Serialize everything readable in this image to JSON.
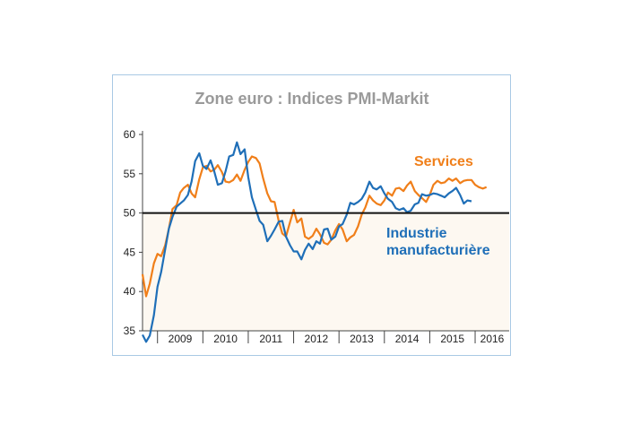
{
  "chart_data": {
    "type": "line",
    "title": "Zone euro : Indices PMI-Markit",
    "xlabel": "",
    "ylabel": "",
    "ylim": [
      35,
      60
    ],
    "yticks": [
      "60",
      "55",
      "50",
      "45",
      "40",
      "35"
    ],
    "xlim": [
      2008.67,
      2016.75
    ],
    "x_tick_labels": [
      "2009",
      "2010",
      "2011",
      "2012",
      "2013",
      "2014",
      "2015",
      "2016"
    ],
    "reference_line": 50,
    "grid": false,
    "colors": {
      "services": "#f07f1a",
      "industrie": "#1f6fb8",
      "reference": "#111111",
      "shade": "#fdf8f1",
      "frame": "#a9c9e4"
    },
    "series": [
      {
        "name": "Services",
        "label_lines": [
          "Services"
        ],
        "color": "#f07f1a",
        "points": [
          [
            2008.67,
            42.2
          ],
          [
            2008.75,
            39.4
          ],
          [
            2008.83,
            41.0
          ],
          [
            2008.92,
            43.6
          ],
          [
            2009.0,
            44.8
          ],
          [
            2009.08,
            44.5
          ],
          [
            2009.17,
            45.9
          ],
          [
            2009.25,
            48.0
          ],
          [
            2009.33,
            50.5
          ],
          [
            2009.42,
            51.0
          ],
          [
            2009.5,
            52.6
          ],
          [
            2009.58,
            53.2
          ],
          [
            2009.67,
            53.6
          ],
          [
            2009.75,
            52.5
          ],
          [
            2009.83,
            52.0
          ],
          [
            2009.92,
            54.3
          ],
          [
            2010.0,
            55.8
          ],
          [
            2010.08,
            56.0
          ],
          [
            2010.17,
            55.3
          ],
          [
            2010.25,
            55.5
          ],
          [
            2010.33,
            56.1
          ],
          [
            2010.42,
            55.2
          ],
          [
            2010.5,
            54.0
          ],
          [
            2010.58,
            53.9
          ],
          [
            2010.67,
            54.2
          ],
          [
            2010.75,
            54.9
          ],
          [
            2010.83,
            54.1
          ],
          [
            2010.92,
            55.5
          ],
          [
            2011.0,
            56.5
          ],
          [
            2011.08,
            57.2
          ],
          [
            2011.17,
            57.0
          ],
          [
            2011.25,
            56.3
          ],
          [
            2011.33,
            54.4
          ],
          [
            2011.42,
            52.5
          ],
          [
            2011.5,
            51.5
          ],
          [
            2011.58,
            51.4
          ],
          [
            2011.67,
            49.0
          ],
          [
            2011.75,
            47.4
          ],
          [
            2011.83,
            47.0
          ],
          [
            2011.92,
            48.8
          ],
          [
            2012.0,
            50.4
          ],
          [
            2012.08,
            48.8
          ],
          [
            2012.17,
            49.3
          ],
          [
            2012.25,
            47.0
          ],
          [
            2012.33,
            46.7
          ],
          [
            2012.42,
            47.1
          ],
          [
            2012.5,
            48.0
          ],
          [
            2012.58,
            47.3
          ],
          [
            2012.67,
            46.2
          ],
          [
            2012.75,
            46.0
          ],
          [
            2012.83,
            46.6
          ],
          [
            2012.92,
            47.8
          ],
          [
            2013.0,
            48.6
          ],
          [
            2013.08,
            47.9
          ],
          [
            2013.17,
            46.4
          ],
          [
            2013.25,
            46.9
          ],
          [
            2013.33,
            47.2
          ],
          [
            2013.42,
            48.3
          ],
          [
            2013.5,
            49.8
          ],
          [
            2013.58,
            50.7
          ],
          [
            2013.67,
            52.2
          ],
          [
            2013.75,
            51.6
          ],
          [
            2013.83,
            51.2
          ],
          [
            2013.92,
            51.0
          ],
          [
            2014.0,
            51.6
          ],
          [
            2014.08,
            52.6
          ],
          [
            2014.17,
            52.2
          ],
          [
            2014.25,
            53.1
          ],
          [
            2014.33,
            53.2
          ],
          [
            2014.42,
            52.8
          ],
          [
            2014.5,
            53.5
          ],
          [
            2014.58,
            54.0
          ],
          [
            2014.67,
            52.8
          ],
          [
            2014.75,
            52.3
          ],
          [
            2014.83,
            51.9
          ],
          [
            2014.92,
            51.4
          ],
          [
            2015.0,
            52.3
          ],
          [
            2015.08,
            53.6
          ],
          [
            2015.17,
            54.1
          ],
          [
            2015.25,
            53.8
          ],
          [
            2015.33,
            53.9
          ],
          [
            2015.42,
            54.4
          ],
          [
            2015.5,
            54.1
          ],
          [
            2015.58,
            54.4
          ],
          [
            2015.67,
            53.8
          ],
          [
            2015.75,
            54.1
          ],
          [
            2015.83,
            54.2
          ],
          [
            2015.92,
            54.2
          ],
          [
            2016.0,
            53.6
          ],
          [
            2016.08,
            53.3
          ],
          [
            2016.17,
            53.1
          ],
          [
            2016.25,
            53.3
          ]
        ]
      },
      {
        "name": "Industrie manufacturière",
        "label_lines": [
          "Industrie",
          "manufacturière"
        ],
        "color": "#1f6fb8",
        "points": [
          [
            2008.67,
            34.5
          ],
          [
            2008.75,
            33.6
          ],
          [
            2008.83,
            34.4
          ],
          [
            2008.92,
            37.0
          ],
          [
            2009.0,
            40.6
          ],
          [
            2009.08,
            42.5
          ],
          [
            2009.17,
            45.4
          ],
          [
            2009.25,
            48.0
          ],
          [
            2009.33,
            49.5
          ],
          [
            2009.42,
            50.8
          ],
          [
            2009.5,
            51.2
          ],
          [
            2009.58,
            51.6
          ],
          [
            2009.67,
            52.3
          ],
          [
            2009.75,
            54.0
          ],
          [
            2009.83,
            56.6
          ],
          [
            2009.92,
            57.6
          ],
          [
            2010.0,
            56.0
          ],
          [
            2010.08,
            55.6
          ],
          [
            2010.17,
            56.7
          ],
          [
            2010.25,
            55.3
          ],
          [
            2010.33,
            53.6
          ],
          [
            2010.42,
            53.8
          ],
          [
            2010.5,
            55.3
          ],
          [
            2010.58,
            57.2
          ],
          [
            2010.67,
            57.4
          ],
          [
            2010.75,
            59.0
          ],
          [
            2010.83,
            57.5
          ],
          [
            2010.92,
            58.1
          ],
          [
            2011.0,
            54.6
          ],
          [
            2011.08,
            52.0
          ],
          [
            2011.17,
            50.4
          ],
          [
            2011.25,
            49.0
          ],
          [
            2011.33,
            48.5
          ],
          [
            2011.42,
            46.4
          ],
          [
            2011.5,
            47.1
          ],
          [
            2011.58,
            47.9
          ],
          [
            2011.67,
            48.9
          ],
          [
            2011.75,
            49.0
          ],
          [
            2011.83,
            47.0
          ],
          [
            2011.92,
            45.9
          ],
          [
            2012.0,
            45.1
          ],
          [
            2012.08,
            45.1
          ],
          [
            2012.17,
            44.1
          ],
          [
            2012.25,
            45.3
          ],
          [
            2012.33,
            46.1
          ],
          [
            2012.42,
            45.4
          ],
          [
            2012.5,
            46.4
          ],
          [
            2012.58,
            46.1
          ],
          [
            2012.67,
            47.9
          ],
          [
            2012.75,
            48.0
          ],
          [
            2012.83,
            46.6
          ],
          [
            2012.92,
            47.0
          ],
          [
            2013.0,
            48.3
          ],
          [
            2013.08,
            48.6
          ],
          [
            2013.17,
            49.8
          ],
          [
            2013.25,
            51.3
          ],
          [
            2013.33,
            51.1
          ],
          [
            2013.42,
            51.4
          ],
          [
            2013.5,
            51.8
          ],
          [
            2013.58,
            52.6
          ],
          [
            2013.67,
            54.0
          ],
          [
            2013.75,
            53.2
          ],
          [
            2013.83,
            53.0
          ],
          [
            2013.92,
            53.4
          ],
          [
            2014.0,
            52.5
          ],
          [
            2014.08,
            51.8
          ],
          [
            2014.17,
            51.4
          ],
          [
            2014.25,
            50.6
          ],
          [
            2014.33,
            50.4
          ],
          [
            2014.42,
            50.6
          ],
          [
            2014.5,
            50.1
          ],
          [
            2014.58,
            50.3
          ],
          [
            2014.67,
            51.1
          ],
          [
            2014.75,
            51.3
          ],
          [
            2014.83,
            52.4
          ],
          [
            2014.92,
            52.2
          ],
          [
            2015.0,
            52.3
          ],
          [
            2015.08,
            52.5
          ],
          [
            2015.17,
            52.4
          ],
          [
            2015.25,
            52.2
          ],
          [
            2015.33,
            52.0
          ],
          [
            2015.42,
            52.5
          ],
          [
            2015.5,
            52.8
          ],
          [
            2015.58,
            53.2
          ],
          [
            2015.67,
            52.3
          ],
          [
            2015.75,
            51.2
          ],
          [
            2015.83,
            51.6
          ],
          [
            2015.92,
            51.5
          ]
        ]
      }
    ]
  }
}
